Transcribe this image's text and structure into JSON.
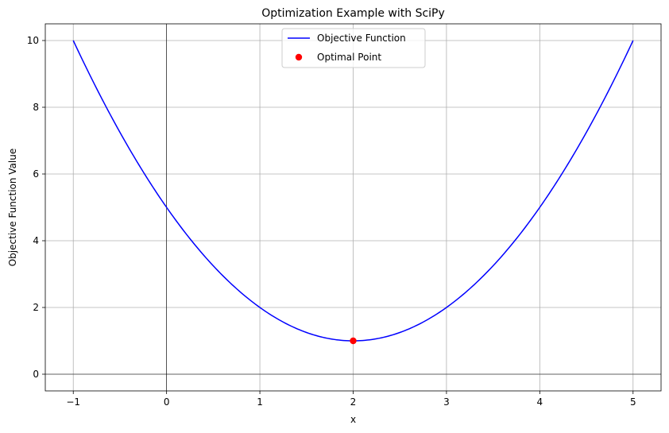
{
  "chart_data": {
    "type": "line",
    "title": "Optimization Example with SciPy",
    "xlabel": "x",
    "ylabel": "Objective Function Value",
    "xlim": [
      -1.3,
      5.3
    ],
    "ylim": [
      -0.5,
      10.5
    ],
    "xticks": [
      -1,
      0,
      1,
      2,
      3,
      4,
      5
    ],
    "yticks": [
      0,
      2,
      4,
      6,
      8,
      10
    ],
    "xtick_labels": [
      "−1",
      "0",
      "1",
      "2",
      "3",
      "4",
      "5"
    ],
    "ytick_labels": [
      "0",
      "2",
      "4",
      "6",
      "8",
      "10"
    ],
    "grid": true,
    "reference_lines": {
      "x": 0,
      "y": 0
    },
    "legend_position": "top-center",
    "series": [
      {
        "name": "Objective Function",
        "kind": "line",
        "color": "#0000ff",
        "x": [
          -1.0,
          -0.5,
          0.0,
          0.5,
          1.0,
          1.5,
          2.0,
          2.5,
          3.0,
          3.5,
          4.0,
          4.5,
          5.0
        ],
        "y": [
          10.0,
          7.25,
          5.0,
          3.25,
          2.0,
          1.25,
          1.0,
          1.25,
          2.0,
          3.25,
          5.0,
          7.25,
          10.0
        ]
      },
      {
        "name": "Optimal Point",
        "kind": "scatter",
        "color": "#ff0000",
        "x": [
          2.0
        ],
        "y": [
          1.0
        ]
      }
    ]
  }
}
